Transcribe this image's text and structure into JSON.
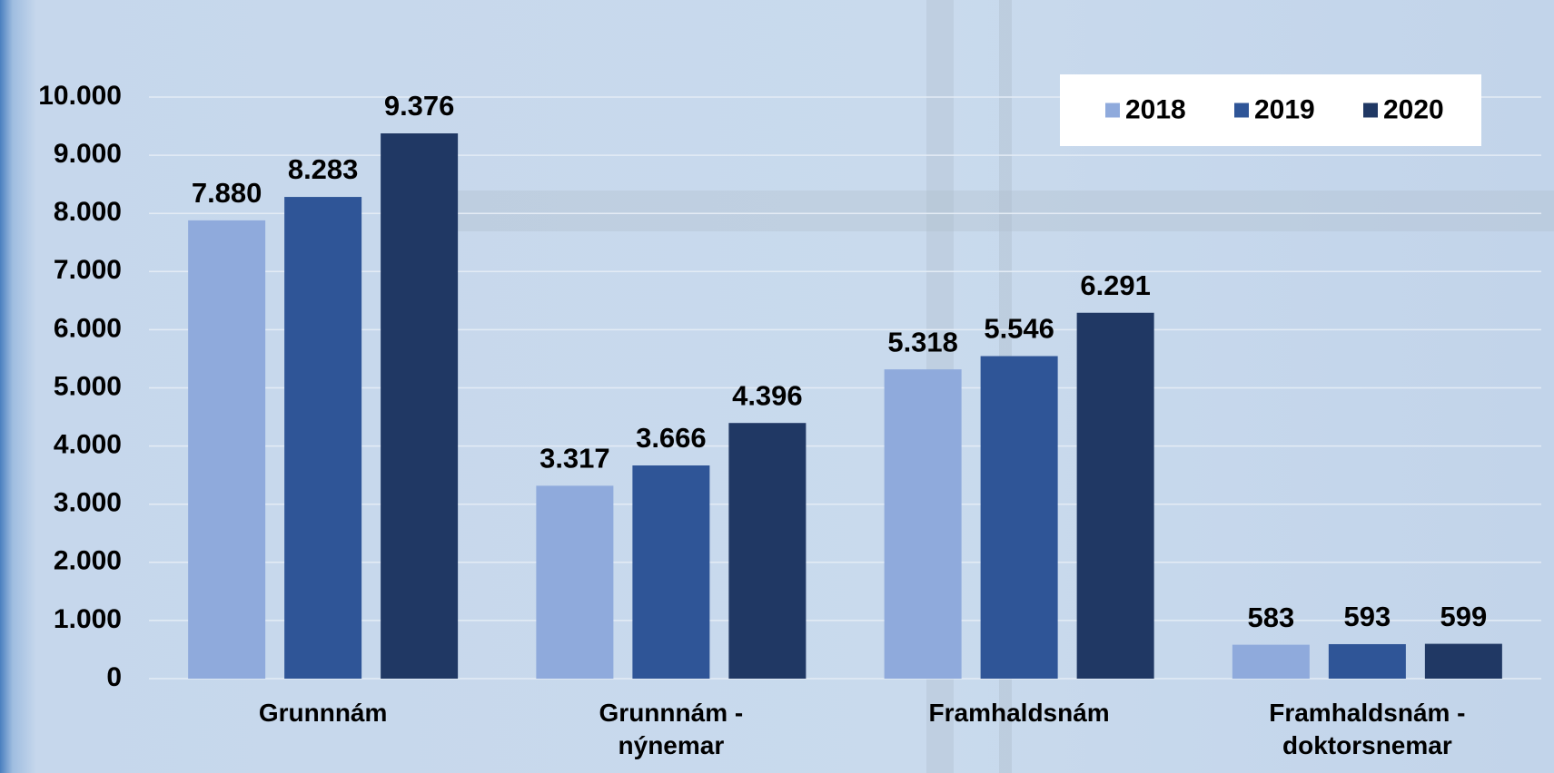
{
  "chart_data": {
    "type": "bar",
    "categories": [
      "Grunnnám",
      "Grunnnám - nýnemar",
      "Framhaldsnám",
      "Framhaldsnám - doktorsnemar"
    ],
    "series": [
      {
        "name": "2018",
        "color": "#8faadc",
        "values": [
          7880,
          3317,
          5318,
          583
        ],
        "value_labels": [
          "7.880",
          "3.317",
          "5.318",
          "583"
        ]
      },
      {
        "name": "2019",
        "color": "#2f5597",
        "values": [
          8283,
          3666,
          5546,
          593
        ],
        "value_labels": [
          "8.283",
          "3.666",
          "5.546",
          "593"
        ]
      },
      {
        "name": "2020",
        "color": "#203864",
        "values": [
          9376,
          4396,
          6291,
          599
        ],
        "value_labels": [
          "9.376",
          "4.396",
          "6.291",
          "599"
        ]
      }
    ],
    "ylim": [
      0,
      10000
    ],
    "yticks": [
      {
        "value": 0,
        "label": "0"
      },
      {
        "value": 1000,
        "label": "1.000"
      },
      {
        "value": 2000,
        "label": "2.000"
      },
      {
        "value": 3000,
        "label": "3.000"
      },
      {
        "value": 4000,
        "label": "4.000"
      },
      {
        "value": 5000,
        "label": "5.000"
      },
      {
        "value": 6000,
        "label": "6.000"
      },
      {
        "value": 7000,
        "label": "7.000"
      },
      {
        "value": 8000,
        "label": "8.000"
      },
      {
        "value": 9000,
        "label": "9.000"
      },
      {
        "value": 10000,
        "label": "10.000"
      }
    ],
    "grid": true,
    "legend": "top-right"
  }
}
